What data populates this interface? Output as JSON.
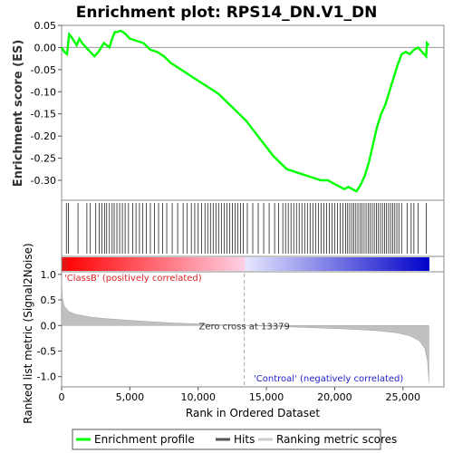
{
  "chart_data": {
    "type": "line",
    "title": "Enrichment plot: RPS14_DN.V1_DN",
    "enrichment": {
      "ylabel": "Enrichment score (ES)",
      "ylim": [
        -0.345,
        0.05
      ],
      "yticks": [
        0.05,
        0.0,
        -0.05,
        -0.1,
        -0.15,
        -0.2,
        -0.25,
        -0.3
      ],
      "ytick_labels": [
        "0.05",
        "0.00",
        "-0.05",
        "-0.10",
        "-0.15",
        "-0.20",
        "-0.25",
        "-0.30"
      ],
      "color": "#00ff00",
      "x": [
        0,
        200,
        400,
        550,
        700,
        900,
        1100,
        1300,
        1500,
        1800,
        2100,
        2400,
        2700,
        2900,
        3100,
        3300,
        3500,
        3700,
        3900,
        4100,
        4300,
        4500,
        4700,
        5000,
        5500,
        6000,
        6500,
        7000,
        7500,
        8000,
        8500,
        9000,
        9500,
        10000,
        10500,
        11000,
        11500,
        12000,
        12500,
        13000,
        13500,
        14000,
        14500,
        15000,
        15500,
        16000,
        16500,
        17000,
        17500,
        18000,
        18500,
        19000,
        19500,
        19800,
        20100,
        20400,
        20700,
        21000,
        21300,
        21600,
        21900,
        22200,
        22500,
        22800,
        23100,
        23400,
        23700,
        24000,
        24300,
        24600,
        24900,
        25200,
        25500,
        25800,
        26100,
        26400,
        26700,
        26750,
        26900
      ],
      "y": [
        0.0,
        -0.01,
        -0.015,
        0.03,
        0.025,
        0.015,
        0.005,
        0.02,
        0.01,
        0.0,
        -0.01,
        -0.02,
        -0.01,
        0.0,
        0.01,
        0.005,
        0.0,
        0.02,
        0.035,
        0.035,
        0.038,
        0.035,
        0.03,
        0.02,
        0.015,
        0.01,
        -0.005,
        -0.01,
        -0.02,
        -0.035,
        -0.045,
        -0.055,
        -0.065,
        -0.075,
        -0.085,
        -0.095,
        -0.105,
        -0.12,
        -0.135,
        -0.15,
        -0.165,
        -0.185,
        -0.205,
        -0.225,
        -0.245,
        -0.26,
        -0.275,
        -0.28,
        -0.285,
        -0.29,
        -0.295,
        -0.3,
        -0.3,
        -0.305,
        -0.31,
        -0.315,
        -0.32,
        -0.315,
        -0.32,
        -0.325,
        -0.31,
        -0.29,
        -0.26,
        -0.22,
        -0.18,
        -0.15,
        -0.13,
        -0.1,
        -0.07,
        -0.04,
        -0.015,
        -0.01,
        -0.015,
        -0.005,
        0.0,
        -0.01,
        -0.02,
        0.01,
        0.005
      ]
    },
    "hits": {
      "label": "Hits",
      "positions": [
        350,
        500,
        1200,
        1850,
        2100,
        2500,
        2750,
        2950,
        3150,
        3300,
        3500,
        3700,
        3850,
        4050,
        4250,
        4450,
        4650,
        4900,
        5200,
        5450,
        5700,
        5950,
        6200,
        6500,
        6800,
        7100,
        7400,
        7700,
        8100,
        8500,
        8900,
        9200,
        9500,
        9750,
        10000,
        10250,
        10500,
        10700,
        10900,
        11100,
        11300,
        11500,
        11700,
        11900,
        12100,
        12300,
        12500,
        12700,
        12900,
        13100,
        13300,
        13600,
        14000,
        14400,
        14800,
        15200,
        15600,
        15900,
        16200,
        16400,
        16600,
        16800,
        17000,
        17200,
        17400,
        17600,
        17800,
        18000,
        18200,
        18400,
        18600,
        18800,
        19000,
        19200,
        19400,
        19600,
        19800,
        20000,
        20200,
        20400,
        20600,
        20800,
        20950,
        21100,
        21250,
        21400,
        21550,
        21700,
        21850,
        22000,
        22150,
        22300,
        22450,
        22600,
        22750,
        22900,
        23050,
        23200,
        23350,
        23500,
        23650,
        23800,
        23950,
        24100,
        24250,
        24400,
        24550,
        24700,
        24900,
        25300,
        25600,
        25800,
        26100,
        26700
      ]
    },
    "ranked": {
      "ylabel": "Ranked list metric (Signal2Noise)",
      "ylim": [
        -1.2,
        1.05
      ],
      "yticks": [
        1.0,
        0.5,
        0.0,
        -0.5,
        -1.0
      ],
      "ytick_labels": [
        "1.0",
        "0.5",
        "0.0",
        "-0.5",
        "-1.0"
      ],
      "x": [
        0,
        50,
        200,
        500,
        1000,
        2000,
        3000,
        5000,
        8000,
        11000,
        13379,
        16000,
        19000,
        21000,
        23000,
        24500,
        25500,
        26200,
        26600,
        26800,
        26900
      ],
      "y": [
        0.9,
        0.55,
        0.38,
        0.28,
        0.22,
        0.17,
        0.14,
        0.1,
        0.05,
        0.02,
        0.0,
        -0.02,
        -0.05,
        -0.07,
        -0.1,
        -0.14,
        -0.2,
        -0.3,
        -0.45,
        -0.7,
        -1.1
      ]
    },
    "zero_cross": 13379,
    "zero_cross_label": "Zero cross at 13379",
    "pos_label": "'ClassB' (positively correlated)",
    "neg_label": "'Controal' (negatively correlated)",
    "xlabel": "Rank in Ordered Dataset",
    "xlim": [
      0,
      28000
    ],
    "xticks": [
      0,
      5000,
      10000,
      15000,
      20000,
      25000
    ],
    "xtick_labels": [
      "0",
      "5,000",
      "10,000",
      "15,000",
      "20,000",
      "25,000"
    ],
    "n_genes": 26900,
    "legend": {
      "placement": "bottom",
      "items": [
        {
          "label": "Enrichment profile",
          "color": "#00ff00"
        },
        {
          "label": "Hits",
          "color": "#555555"
        },
        {
          "label": "Ranking metric scores",
          "color": "#cccccc"
        }
      ]
    }
  }
}
